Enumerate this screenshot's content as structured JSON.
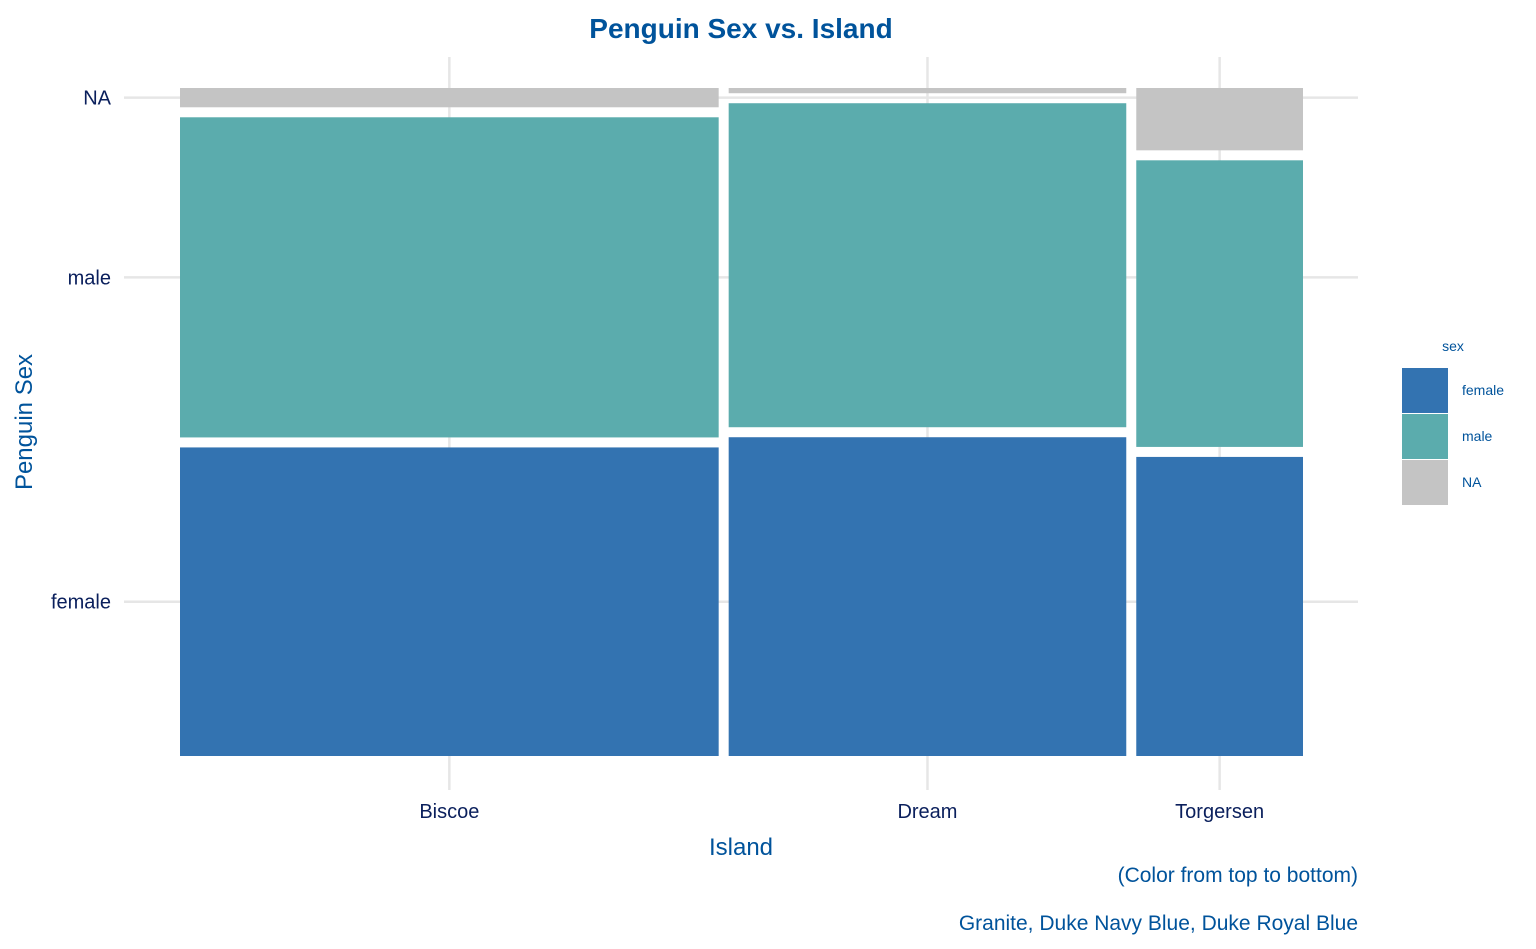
{
  "chart_data": {
    "type": "mosaic",
    "title": "Penguin Sex vs. Island",
    "xlabel": "Island",
    "ylabel": "Penguin Sex",
    "caption_line1": "(Color from top to bottom)",
    "caption_line2": "Granite, Duke Navy Blue, Duke Royal Blue",
    "legend_title": "sex",
    "legend_position": "right",
    "grid": true,
    "categories": [
      "Biscoe",
      "Dream",
      "Torgersen"
    ],
    "sex_levels": [
      "female",
      "male",
      "NA"
    ],
    "counts": {
      "Biscoe": {
        "female": 80,
        "male": 83,
        "NA": 5
      },
      "Dream": {
        "female": 61,
        "male": 62,
        "NA": 1
      },
      "Torgersen": {
        "female": 24,
        "male": 23,
        "NA": 5
      }
    },
    "colors": {
      "female": "#3373B1",
      "male": "#5BACAD",
      "NA": "#C4C4C4"
    }
  }
}
